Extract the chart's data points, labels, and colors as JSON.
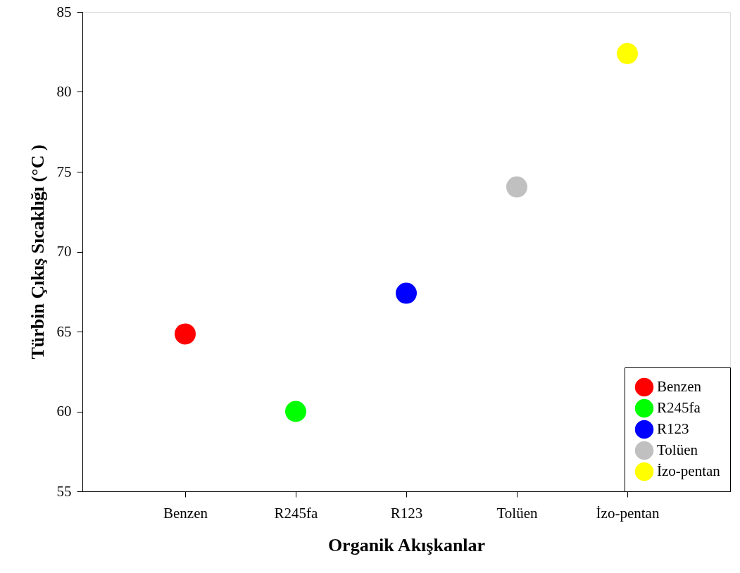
{
  "chart_data": {
    "type": "scatter",
    "xlabel": "Organik Akışkanlar",
    "ylabel": "Türbin Çıkış Sıcaklığı (°C )",
    "categories": [
      "Benzen",
      "R245fa",
      "R123",
      "Tolüen",
      "İzo-pentan"
    ],
    "series": [
      {
        "name": "Benzen",
        "color": "#ff0000",
        "values": [
          64.85,
          null,
          null,
          null,
          null
        ]
      },
      {
        "name": "R245fa",
        "color": "#00ff00",
        "values": [
          null,
          60.0,
          null,
          null,
          null
        ]
      },
      {
        "name": "R123",
        "color": "#0000ff",
        "values": [
          null,
          null,
          67.4,
          null,
          null
        ]
      },
      {
        "name": "Tolüen",
        "color": "#c0c0c0",
        "values": [
          null,
          null,
          null,
          74.05,
          null
        ]
      },
      {
        "name": "İzo-pentan",
        "color": "#ffff00",
        "values": [
          null,
          null,
          null,
          null,
          82.4
        ]
      }
    ],
    "ylim": [
      55,
      85
    ],
    "yticks": [
      55,
      60,
      65,
      70,
      75,
      80,
      85
    ],
    "marker": "circle",
    "grid": false,
    "legend": "bottom right"
  }
}
